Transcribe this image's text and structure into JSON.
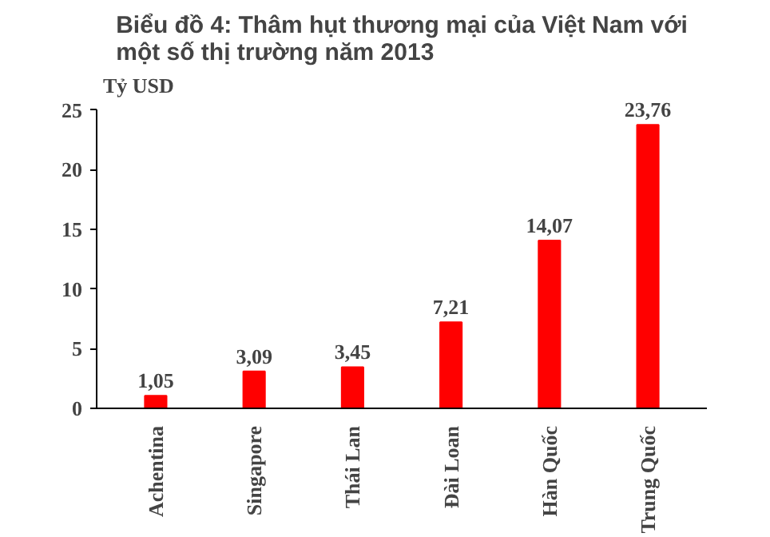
{
  "chart_data": {
    "type": "bar",
    "title": "Biểu đồ 4: Thâm hụt thương mại của Việt Nam với\nmột số thị trường năm 2013",
    "ylabel": "Tỷ USD",
    "categories": [
      "Achentina",
      "Singapore",
      "Thái Lan",
      "Đài Loan",
      "Hàn Quốc",
      "Trung Quốc"
    ],
    "values": [
      1.05,
      3.09,
      3.45,
      7.21,
      14.07,
      23.76
    ],
    "color": "#ff0000",
    "value_labels": [
      "1,05",
      "3,09",
      "3,45",
      "7,21",
      "14,07",
      "23,76"
    ],
    "ylim": [
      0,
      25
    ],
    "yticks": [
      0,
      5,
      10,
      15,
      20,
      25
    ],
    "grid": false
  }
}
